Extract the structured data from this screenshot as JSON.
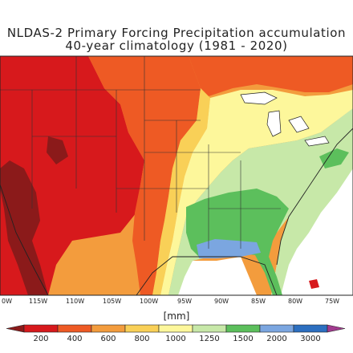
{
  "title": {
    "line1": "NLDAS-2 Primary Forcing Precipitation accumulation",
    "line2": "40-year climatology (1981 - 2020)"
  },
  "map": {
    "longitude_labels": [
      "0W",
      "115W",
      "110W",
      "105W",
      "100W",
      "95W",
      "90W",
      "85W",
      "80W",
      "75W"
    ],
    "legend": {
      "units": "[mm]",
      "boundaries": [
        "200",
        "400",
        "600",
        "800",
        "1000",
        "1250",
        "1500",
        "2000",
        "3000"
      ],
      "colors": [
        "#8b1a1a",
        "#d7191c",
        "#ee5a24",
        "#f39c3d",
        "#f9d057",
        "#fdf79b",
        "#c7e8a8",
        "#5cbf5c",
        "#7ba6e0",
        "#2c6fc0",
        "#a23b8f"
      ]
    }
  }
}
